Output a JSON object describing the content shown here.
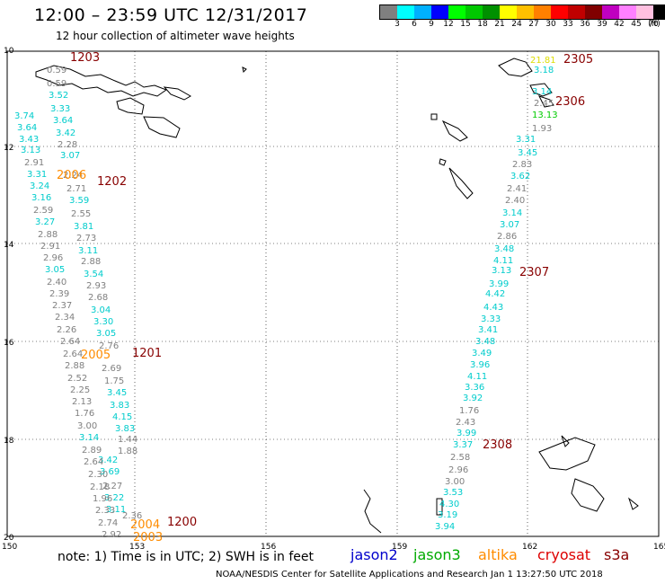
{
  "header": {
    "title": "12:00 – 23:59 UTC 12/31/2017",
    "subtitle": "12 hour collection of altimeter wave heights"
  },
  "colorbar": {
    "colors": [
      "#808080",
      "#00ffff",
      "#00b0ff",
      "#0000ff",
      "#00ff00",
      "#00c800",
      "#009000",
      "#ffff00",
      "#ffc000",
      "#ff8000",
      "#ff0000",
      "#c00000",
      "#800000",
      "#c000c0",
      "#ff80ff",
      "#ffc0e0",
      "#000000"
    ],
    "labels": [
      "3",
      "6",
      "9",
      "12",
      "15",
      "18",
      "21",
      "24",
      "27",
      "30",
      "33",
      "36",
      "39",
      "42",
      "45",
      "70"
    ],
    "unit": "(ft)"
  },
  "axes": {
    "y_labels": [
      "10",
      "12",
      "14",
      "16",
      "18",
      "20"
    ],
    "x_labels": [
      "150",
      "153",
      "156",
      "159",
      "162",
      "165"
    ]
  },
  "note": "note: 1) Time is in UTC; 2) SWH is in feet",
  "legend": [
    {
      "name": "jason2",
      "color": "#0000cc"
    },
    {
      "name": "jason3",
      "color": "#00aa00"
    },
    {
      "name": "altika",
      "color": "#ff8c00"
    },
    {
      "name": "cryosat",
      "color": "#dd0000"
    },
    {
      "name": "s3a",
      "color": "#880000"
    }
  ],
  "footer": "NOAA/NESDIS Center for Satellite Applications and Research   Jan  1 13:27:50 UTC 2018",
  "time_labels": [
    {
      "text": "1203",
      "color": "#880000"
    },
    {
      "text": "1202",
      "color": "#880000"
    },
    {
      "text": "1201",
      "color": "#880000"
    },
    {
      "text": "1200",
      "color": "#880000"
    },
    {
      "text": "2305",
      "color": "#880000"
    },
    {
      "text": "2306",
      "color": "#880000"
    },
    {
      "text": "2307",
      "color": "#880000"
    },
    {
      "text": "2308",
      "color": "#880000"
    },
    {
      "text": "2006",
      "color": "#ff8c00"
    },
    {
      "text": "2005",
      "color": "#ff8c00"
    },
    {
      "text": "2004",
      "color": "#ff8c00"
    },
    {
      "text": "2003",
      "color": "#ff8c00"
    }
  ],
  "track_a": [
    {
      "v": "0.59",
      "c": "#808080"
    },
    {
      "v": "0.59",
      "c": "#808080"
    },
    {
      "v": "3.52",
      "c": "#00cccc"
    },
    {
      "v": "3.33",
      "c": "#00cccc"
    },
    {
      "v": "3.64",
      "c": "#00cccc"
    },
    {
      "v": "3.42",
      "c": "#00cccc"
    },
    {
      "v": "2.28",
      "c": "#808080"
    },
    {
      "v": "3.07",
      "c": "#00cccc"
    },
    {
      "v": "2.24",
      "c": "#808080"
    },
    {
      "v": "2.71",
      "c": "#808080"
    },
    {
      "v": "3.59",
      "c": "#00cccc"
    },
    {
      "v": "2.55",
      "c": "#808080"
    },
    {
      "v": "3.81",
      "c": "#00cccc"
    },
    {
      "v": "2.73",
      "c": "#808080"
    },
    {
      "v": "3.11",
      "c": "#00cccc"
    },
    {
      "v": "2.88",
      "c": "#808080"
    },
    {
      "v": "3.54",
      "c": "#00cccc"
    },
    {
      "v": "2.93",
      "c": "#808080"
    },
    {
      "v": "2.68",
      "c": "#808080"
    },
    {
      "v": "3.04",
      "c": "#00cccc"
    },
    {
      "v": "3.30",
      "c": "#00cccc"
    },
    {
      "v": "3.05",
      "c": "#00cccc"
    },
    {
      "v": "2.76",
      "c": "#808080"
    },
    {
      "v": "2.69",
      "c": "#808080"
    },
    {
      "v": "1.75",
      "c": "#808080"
    },
    {
      "v": "3.45",
      "c": "#00cccc"
    },
    {
      "v": "3.83",
      "c": "#00cccc"
    },
    {
      "v": "4.15",
      "c": "#00cccc"
    },
    {
      "v": "3.83",
      "c": "#00cccc"
    },
    {
      "v": "1.44",
      "c": "#808080"
    },
    {
      "v": "1.88",
      "c": "#808080"
    },
    {
      "v": "3.42",
      "c": "#00cccc"
    },
    {
      "v": "3.69",
      "c": "#00cccc"
    },
    {
      "v": "2.27",
      "c": "#808080"
    },
    {
      "v": "3.22",
      "c": "#00cccc"
    },
    {
      "v": "3.11",
      "c": "#00cccc"
    },
    {
      "v": "2.36",
      "c": "#808080"
    }
  ],
  "track_b": [
    {
      "v": "3.74",
      "c": "#00cccc"
    },
    {
      "v": "3.64",
      "c": "#00cccc"
    },
    {
      "v": "3.43",
      "c": "#00cccc"
    },
    {
      "v": "3.13",
      "c": "#00cccc"
    },
    {
      "v": "2.91",
      "c": "#808080"
    },
    {
      "v": "3.31",
      "c": "#00cccc"
    },
    {
      "v": "3.24",
      "c": "#00cccc"
    },
    {
      "v": "3.16",
      "c": "#00cccc"
    },
    {
      "v": "2.59",
      "c": "#808080"
    },
    {
      "v": "3.27",
      "c": "#00cccc"
    },
    {
      "v": "2.88",
      "c": "#808080"
    },
    {
      "v": "2.91",
      "c": "#808080"
    },
    {
      "v": "2.96",
      "c": "#808080"
    },
    {
      "v": "3.05",
      "c": "#00cccc"
    },
    {
      "v": "2.40",
      "c": "#808080"
    },
    {
      "v": "2.39",
      "c": "#808080"
    },
    {
      "v": "2.37",
      "c": "#808080"
    },
    {
      "v": "2.34",
      "c": "#808080"
    },
    {
      "v": "2.26",
      "c": "#808080"
    },
    {
      "v": "2.64",
      "c": "#808080"
    },
    {
      "v": "2.64",
      "c": "#808080"
    },
    {
      "v": "2.88",
      "c": "#808080"
    },
    {
      "v": "2.52",
      "c": "#808080"
    },
    {
      "v": "2.25",
      "c": "#808080"
    },
    {
      "v": "2.13",
      "c": "#808080"
    },
    {
      "v": "1.76",
      "c": "#808080"
    },
    {
      "v": "3.00",
      "c": "#808080"
    },
    {
      "v": "3.14",
      "c": "#00cccc"
    },
    {
      "v": "2.89",
      "c": "#808080"
    },
    {
      "v": "2.64",
      "c": "#808080"
    },
    {
      "v": "2.30",
      "c": "#808080"
    },
    {
      "v": "2.18",
      "c": "#808080"
    },
    {
      "v": "1.96",
      "c": "#808080"
    },
    {
      "v": "2.33",
      "c": "#808080"
    },
    {
      "v": "2.74",
      "c": "#808080"
    },
    {
      "v": "2.92",
      "c": "#808080"
    }
  ],
  "track_c": [
    {
      "v": "3.18",
      "c": "#00cccc"
    },
    {
      "v": "3.14",
      "c": "#00cccc"
    },
    {
      "v": "2.45",
      "c": "#808080"
    },
    {
      "v": "13.13",
      "c": "#00cc00"
    },
    {
      "v": "1.93",
      "c": "#808080"
    },
    {
      "v": "3.31",
      "c": "#00cccc"
    },
    {
      "v": "3.45",
      "c": "#00cccc"
    },
    {
      "v": "2.83",
      "c": "#808080"
    },
    {
      "v": "3.62",
      "c": "#00cccc"
    },
    {
      "v": "2.41",
      "c": "#808080"
    },
    {
      "v": "2.40",
      "c": "#808080"
    },
    {
      "v": "3.14",
      "c": "#00cccc"
    },
    {
      "v": "3.07",
      "c": "#00cccc"
    },
    {
      "v": "2.86",
      "c": "#808080"
    },
    {
      "v": "3.48",
      "c": "#00cccc"
    },
    {
      "v": "4.11",
      "c": "#00cccc"
    },
    {
      "v": "3.13",
      "c": "#00cccc"
    },
    {
      "v": "3.99",
      "c": "#00cccc"
    },
    {
      "v": "4.42",
      "c": "#00cccc"
    },
    {
      "v": "4.43",
      "c": "#00cccc"
    },
    {
      "v": "3.33",
      "c": "#00cccc"
    },
    {
      "v": "3.41",
      "c": "#00cccc"
    },
    {
      "v": "3.48",
      "c": "#00cccc"
    },
    {
      "v": "3.49",
      "c": "#00cccc"
    },
    {
      "v": "3.96",
      "c": "#00cccc"
    },
    {
      "v": "4.11",
      "c": "#00cccc"
    },
    {
      "v": "3.36",
      "c": "#00cccc"
    },
    {
      "v": "3.92",
      "c": "#00cccc"
    },
    {
      "v": "1.76",
      "c": "#808080"
    },
    {
      "v": "2.43",
      "c": "#808080"
    },
    {
      "v": "3.99",
      "c": "#00cccc"
    },
    {
      "v": "3.37",
      "c": "#00cccc"
    },
    {
      "v": "2.58",
      "c": "#808080"
    },
    {
      "v": "2.96",
      "c": "#808080"
    },
    {
      "v": "3.00",
      "c": "#808080"
    },
    {
      "v": "3.53",
      "c": "#00cccc"
    },
    {
      "v": "4.30",
      "c": "#00cccc"
    },
    {
      "v": "3.19",
      "c": "#00cccc"
    },
    {
      "v": "3.94",
      "c": "#00cccc"
    }
  ],
  "top_right_value": {
    "v": "21.81",
    "c": "#dddd00"
  }
}
